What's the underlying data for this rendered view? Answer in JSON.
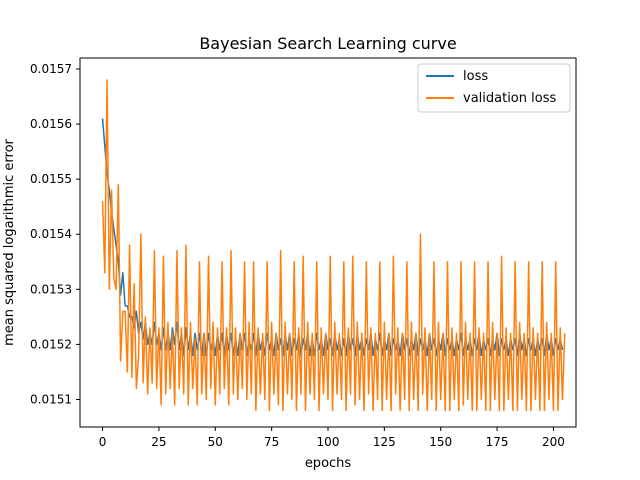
{
  "chart_data": {
    "type": "line",
    "title": "Bayesian Search Learning curve",
    "xlabel": "epochs",
    "ylabel": "mean squared logarithmic error",
    "xlim": [
      -10,
      210
    ],
    "ylim": [
      0.01505,
      0.01572
    ],
    "xticks": [
      "0",
      "25",
      "50",
      "75",
      "100",
      "125",
      "150",
      "175",
      "200"
    ],
    "yticks": [
      "0.0151",
      "0.0152",
      "0.0153",
      "0.0154",
      "0.0155",
      "0.0156",
      "0.0157"
    ],
    "grid": false,
    "legend_position": "upper right",
    "series": [
      {
        "name": "loss",
        "color": "#1f77b4",
        "values": [
          0.01561,
          0.01556,
          0.01551,
          0.01548,
          0.01544,
          0.01541,
          0.01538,
          0.01535,
          0.01529,
          0.01533,
          0.01527,
          0.01527,
          0.01525,
          0.01525,
          0.01523,
          0.01526,
          0.01522,
          0.01524,
          0.01521,
          0.01524,
          0.0152,
          0.01522,
          0.0152,
          0.01524,
          0.0152,
          0.01522,
          0.01519,
          0.01523,
          0.01519,
          0.01522,
          0.01519,
          0.01523,
          0.0152,
          0.01524,
          0.01519,
          0.01522,
          0.01518,
          0.01523,
          0.01519,
          0.01522,
          0.01518,
          0.01522,
          0.01519,
          0.01522,
          0.01518,
          0.01522,
          0.01518,
          0.01522,
          0.01519,
          0.01521,
          0.01518,
          0.01522,
          0.01519,
          0.01522,
          0.01518,
          0.01522,
          0.01519,
          0.01522,
          0.01518,
          0.01521,
          0.01518,
          0.01522,
          0.01519,
          0.01522,
          0.01518,
          0.01521,
          0.01519,
          0.01522,
          0.01518,
          0.01522,
          0.01519,
          0.01521,
          0.01518,
          0.01522,
          0.01519,
          0.01521,
          0.01518,
          0.01522,
          0.01519,
          0.01521,
          0.01518,
          0.01522,
          0.01519,
          0.01522,
          0.01518,
          0.01521,
          0.01519,
          0.01522,
          0.01518,
          0.01521,
          0.01519,
          0.01522,
          0.01518,
          0.01521,
          0.01518,
          0.01522,
          0.01519,
          0.01521,
          0.01518,
          0.01522,
          0.01519,
          0.01521,
          0.01518,
          0.01522,
          0.01519,
          0.01521,
          0.01518,
          0.01521,
          0.01518,
          0.01522,
          0.01519,
          0.01521,
          0.01518,
          0.01522,
          0.01519,
          0.01521,
          0.01518,
          0.01521,
          0.01519,
          0.01522,
          0.01518,
          0.01521,
          0.01519,
          0.01522,
          0.01518,
          0.01521,
          0.01519,
          0.01522,
          0.01518,
          0.01521,
          0.01519,
          0.01521,
          0.01518,
          0.01522,
          0.01519,
          0.01521,
          0.01518,
          0.01521,
          0.01519,
          0.01522,
          0.01518,
          0.01521,
          0.01519,
          0.01521,
          0.01518,
          0.01522,
          0.01519,
          0.01521,
          0.01518,
          0.01521,
          0.01519,
          0.01522,
          0.01518,
          0.01521,
          0.01519,
          0.01521,
          0.01518,
          0.01521,
          0.01519,
          0.01522,
          0.01518,
          0.01521,
          0.01519,
          0.01521,
          0.01518,
          0.01521,
          0.01519,
          0.01522,
          0.01518,
          0.01521,
          0.01519,
          0.01521,
          0.01518,
          0.01521,
          0.01519,
          0.01522,
          0.01518,
          0.01521,
          0.01519,
          0.01521,
          0.01518,
          0.01521,
          0.01519,
          0.01521,
          0.01518,
          0.01522,
          0.01519,
          0.01521,
          0.01518,
          0.01521,
          0.01519,
          0.01521,
          0.01518,
          0.01521,
          0.01519,
          0.01521,
          0.01518,
          0.01522,
          0.01519,
          0.01521,
          0.01518,
          0.01521,
          0.01519,
          0.01521,
          0.01519
        ]
      },
      {
        "name": "validation loss",
        "color": "#ff7f0e",
        "values": [
          0.01546,
          0.01533,
          0.01568,
          0.0153,
          0.01548,
          0.01532,
          0.0153,
          0.01549,
          0.01517,
          0.01526,
          0.01526,
          0.01515,
          0.01538,
          0.01514,
          0.01531,
          0.01512,
          0.01518,
          0.0154,
          0.01513,
          0.01525,
          0.01511,
          0.01523,
          0.01513,
          0.01537,
          0.01512,
          0.01523,
          0.01509,
          0.01536,
          0.01511,
          0.01524,
          0.01512,
          0.01522,
          0.01509,
          0.01537,
          0.01512,
          0.01523,
          0.01511,
          0.01538,
          0.01509,
          0.01524,
          0.01512,
          0.01521,
          0.01509,
          0.01535,
          0.01511,
          0.01522,
          0.0151,
          0.01536,
          0.01512,
          0.01524,
          0.01509,
          0.01523,
          0.01511,
          0.01535,
          0.01512,
          0.01523,
          0.01509,
          0.01537,
          0.01511,
          0.01523,
          0.0151,
          0.01522,
          0.01512,
          0.01535,
          0.0151,
          0.01524,
          0.01511,
          0.01535,
          0.01508,
          0.01523,
          0.01511,
          0.01522,
          0.0151,
          0.01535,
          0.01508,
          0.01524,
          0.01511,
          0.01522,
          0.01509,
          0.01537,
          0.01508,
          0.01524,
          0.01511,
          0.01522,
          0.0151,
          0.01535,
          0.01508,
          0.01523,
          0.01511,
          0.01536,
          0.01508,
          0.01524,
          0.01511,
          0.01522,
          0.0151,
          0.01535,
          0.01508,
          0.01523,
          0.01511,
          0.01522,
          0.0151,
          0.01536,
          0.01508,
          0.01524,
          0.01511,
          0.01522,
          0.0151,
          0.01535,
          0.01508,
          0.01523,
          0.01511,
          0.01536,
          0.01509,
          0.01524,
          0.0151,
          0.01522,
          0.01508,
          0.01535,
          0.01511,
          0.01523,
          0.01508,
          0.01522,
          0.0151,
          0.01535,
          0.01508,
          0.01524,
          0.0151,
          0.01522,
          0.01508,
          0.01536,
          0.01511,
          0.01523,
          0.01508,
          0.01522,
          0.0151,
          0.01535,
          0.01508,
          0.01524,
          0.0151,
          0.01522,
          0.01508,
          0.0154,
          0.01511,
          0.01523,
          0.01508,
          0.01522,
          0.0151,
          0.01535,
          0.01508,
          0.01524,
          0.0151,
          0.01522,
          0.01508,
          0.01535,
          0.01508,
          0.01523,
          0.0151,
          0.01522,
          0.01508,
          0.01535,
          0.01509,
          0.01524,
          0.0151,
          0.01522,
          0.01508,
          0.01535,
          0.01508,
          0.01523,
          0.0151,
          0.01522,
          0.01508,
          0.01535,
          0.01508,
          0.01524,
          0.0151,
          0.01522,
          0.01508,
          0.01536,
          0.01508,
          0.01523,
          0.0151,
          0.01522,
          0.01508,
          0.01535,
          0.01508,
          0.01524,
          0.0151,
          0.01522,
          0.01508,
          0.01535,
          0.01508,
          0.01523,
          0.0151,
          0.01522,
          0.01508,
          0.01535,
          0.01508,
          0.01524,
          0.0151,
          0.01522,
          0.01508,
          0.01535,
          0.01508,
          0.01523,
          0.0151,
          0.01522
        ]
      }
    ]
  }
}
